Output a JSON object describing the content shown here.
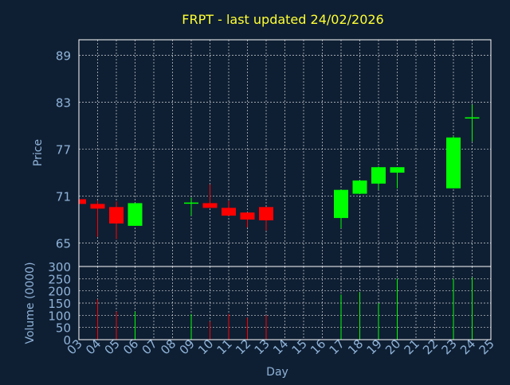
{
  "chart_data": {
    "type": "candlestick",
    "title": "FRPT - last updated 24/02/2026",
    "up_color": "#00ff00",
    "down_color": "#ff0000",
    "background": "#0f1f33",
    "price_panel": {
      "ylabel": "Price",
      "yticks": [
        65,
        71,
        77,
        83,
        89
      ],
      "ylim": [
        62,
        91
      ]
    },
    "volume_panel": {
      "ylabel": "Volume (0000)",
      "yticks": [
        0,
        50,
        100,
        150,
        200,
        250,
        300
      ],
      "ylim": [
        0,
        300
      ]
    },
    "xlabel": "Day",
    "x_ticks": [
      "03",
      "04",
      "05",
      "06",
      "07",
      "08",
      "09",
      "10",
      "11",
      "12",
      "13",
      "14",
      "15",
      "16",
      "17",
      "18",
      "19",
      "20",
      "21",
      "22",
      "23",
      "24",
      "25"
    ],
    "candles": [
      {
        "day": 3,
        "open": 70.6,
        "close": 70.0,
        "high": 70.6,
        "low": 70.0,
        "volume": 0
      },
      {
        "day": 4,
        "open": 70.0,
        "close": 69.4,
        "high": 70.4,
        "low": 65.8,
        "volume": 165
      },
      {
        "day": 5,
        "open": 69.6,
        "close": 67.5,
        "high": 70.3,
        "low": 65.5,
        "volume": 115
      },
      {
        "day": 6,
        "open": 67.2,
        "close": 70.1,
        "high": 70.1,
        "low": 67.2,
        "volume": 115
      },
      {
        "day": 9,
        "open": 70.1,
        "close": 70.1,
        "high": 70.8,
        "low": 68.5,
        "volume": 105
      },
      {
        "day": 10,
        "open": 70.1,
        "close": 69.5,
        "high": 72.5,
        "low": 69.5,
        "volume": 75
      },
      {
        "day": 11,
        "open": 69.5,
        "close": 68.5,
        "high": 70.4,
        "low": 68.5,
        "volume": 105
      },
      {
        "day": 12,
        "open": 68.9,
        "close": 68.0,
        "high": 68.9,
        "low": 67.0,
        "volume": 90
      },
      {
        "day": 13,
        "open": 69.6,
        "close": 67.9,
        "high": 69.6,
        "low": 66.6,
        "volume": 100
      },
      {
        "day": 17,
        "open": 68.2,
        "close": 71.8,
        "high": 71.8,
        "low": 66.9,
        "volume": 185
      },
      {
        "day": 18,
        "open": 71.3,
        "close": 73.0,
        "high": 73.0,
        "low": 71.3,
        "volume": 195
      },
      {
        "day": 19,
        "open": 72.6,
        "close": 74.7,
        "high": 74.8,
        "low": 71.8,
        "volume": 150
      },
      {
        "day": 20,
        "open": 74.0,
        "close": 74.7,
        "high": 74.7,
        "low": 72.0,
        "volume": 250
      },
      {
        "day": 23,
        "open": 72.0,
        "close": 78.5,
        "high": 78.7,
        "low": 72.0,
        "volume": 250
      },
      {
        "day": 24,
        "open": 81.0,
        "close": 81.0,
        "high": 82.7,
        "low": 78.0,
        "volume": 255
      }
    ]
  }
}
